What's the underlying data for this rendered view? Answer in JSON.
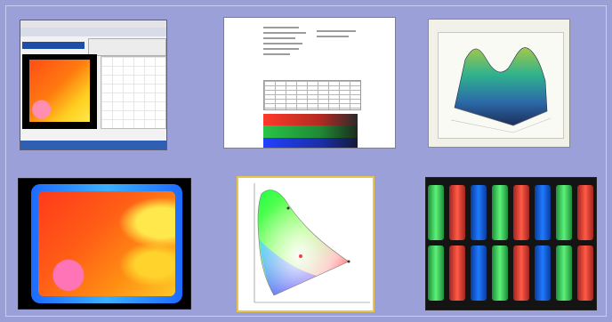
{
  "page": {
    "background": "#9aa0d6",
    "thumbnails": [
      {
        "id": "software-window-thumb",
        "kind": "software window screenshot"
      },
      {
        "id": "report-document-thumb",
        "kind": "report document"
      },
      {
        "id": "3d-surface-plot-thumb",
        "kind": "3D surface plot"
      },
      {
        "id": "thermal-map-thumb",
        "kind": "thermal color map"
      },
      {
        "id": "cie-chromaticity-thumb",
        "kind": "chromaticity diagram"
      },
      {
        "id": "pixel-stripes-thumb",
        "kind": "display subpixel stripes"
      }
    ],
    "colors": {
      "red": "#ff4b3a",
      "green": "#41e06a",
      "blue": "#1f6fff",
      "thermal_hot": "#ff3a1a",
      "thermal_warm": "#ffd22c",
      "thermal_spot": "#ff74b6"
    }
  }
}
